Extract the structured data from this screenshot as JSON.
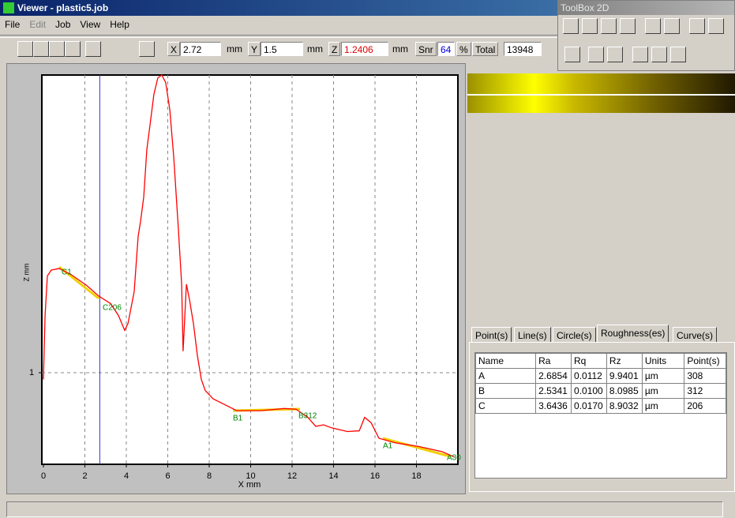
{
  "window": {
    "title": "Viewer - plastic5.job",
    "menu": [
      "File",
      "Edit",
      "Job",
      "View",
      "Help"
    ]
  },
  "toolbar": {
    "x": {
      "label": "X",
      "value": 2.72,
      "unit": "mm"
    },
    "y": {
      "label": "Y",
      "value": 1.5,
      "unit": "mm"
    },
    "z": {
      "label": "Z",
      "value": 1.2406,
      "unit": "mm"
    },
    "snr": {
      "label": "Snr",
      "value": 64,
      "unit": "%"
    },
    "total": {
      "label": "Total",
      "value": 13948
    }
  },
  "toolbox": {
    "title": "ToolBox 2D"
  },
  "chart_data": {
    "type": "line",
    "x_label": "X mm",
    "y_label": "Z mm",
    "x": [
      0,
      0.08,
      0.19,
      0.38,
      0.76,
      1.33,
      2.1,
      2.67,
      3.24,
      3.62,
      3.92,
      4.08,
      4.38,
      4.57,
      4.69,
      4.84,
      4.99,
      5.14,
      5.33,
      5.52,
      5.71,
      5.9,
      6.1,
      6.29,
      6.51,
      6.67,
      6.74,
      6.9,
      7.05,
      7.24,
      7.43,
      7.62,
      7.81,
      8.19,
      8.76,
      9.33,
      10.48,
      11.62,
      12.19,
      12.76,
      13.14,
      13.52,
      13.9,
      14.67,
      15.24,
      15.5,
      15.81,
      16.19,
      16.95,
      18.1,
      19.24,
      19.81
    ],
    "series": [
      {
        "name": "profile",
        "color": "#ff0000",
        "values": [
          0.91,
          1.77,
          2.3,
          2.38,
          2.4,
          2.32,
          2.17,
          2.03,
          1.93,
          1.77,
          1.57,
          1.66,
          2.09,
          2.83,
          3.04,
          3.36,
          4.0,
          4.32,
          4.74,
          4.96,
          5.0,
          4.9,
          4.53,
          3.89,
          2.94,
          2.19,
          1.29,
          2.19,
          1.98,
          1.66,
          1.23,
          0.91,
          0.76,
          0.65,
          0.57,
          0.49,
          0.49,
          0.52,
          0.51,
          0.4,
          0.28,
          0.3,
          0.26,
          0.21,
          0.22,
          0.4,
          0.33,
          0.12,
          0.06,
          0.01,
          -0.06,
          -0.13
        ]
      }
    ],
    "xlim": [
      0,
      20
    ],
    "xticks": [
      0,
      2,
      4,
      6,
      8,
      10,
      12,
      14,
      16,
      18
    ],
    "ylim": [
      -0.23,
      5
    ],
    "yticks": [
      1
    ],
    "grid": true,
    "annotations": [
      "C1",
      "C206",
      "B1",
      "B312",
      "A1",
      "A30"
    ]
  },
  "tabs": [
    "Point(s)",
    "Line(s)",
    "Circle(s)",
    "Roughness(es)",
    "Curve(s)"
  ],
  "table": {
    "columns": [
      "Name",
      "Ra",
      "Rq",
      "Rz",
      "Units",
      "Point(s)"
    ],
    "rows": [
      [
        "A",
        "2.6854",
        "0.0112",
        "9.9401",
        "µm",
        "308"
      ],
      [
        "B",
        "2.5341",
        "0.0100",
        "8.0985",
        "µm",
        "312"
      ],
      [
        "C",
        "3.6436",
        "0.0170",
        "8.9032",
        "µm",
        "206"
      ]
    ]
  }
}
